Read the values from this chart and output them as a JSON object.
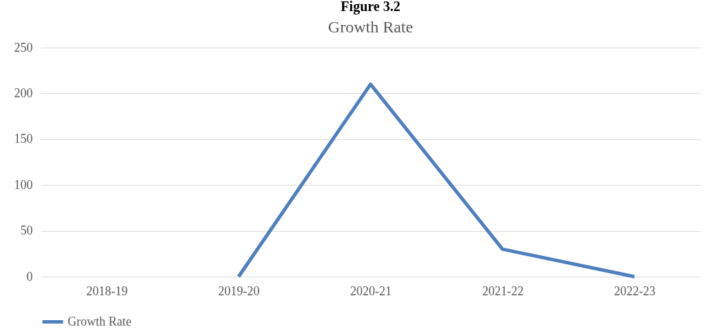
{
  "chart_data": {
    "type": "line",
    "title": "Growth Rate",
    "annotations": [
      "Figure 3.2"
    ],
    "categories": [
      "2018-19",
      "2019-20",
      "2020-21",
      "2021-22",
      "2022-23"
    ],
    "series": [
      {
        "name": "Growth Rate",
        "color": "#4e7fbe",
        "values": [
          null,
          0,
          210,
          30,
          0
        ]
      }
    ],
    "ylim": [
      0,
      250
    ],
    "yticks": [
      0,
      50,
      100,
      150,
      200,
      250
    ],
    "grid": "y",
    "legend": "bottom",
    "marker": "none",
    "line_style": "solid"
  }
}
